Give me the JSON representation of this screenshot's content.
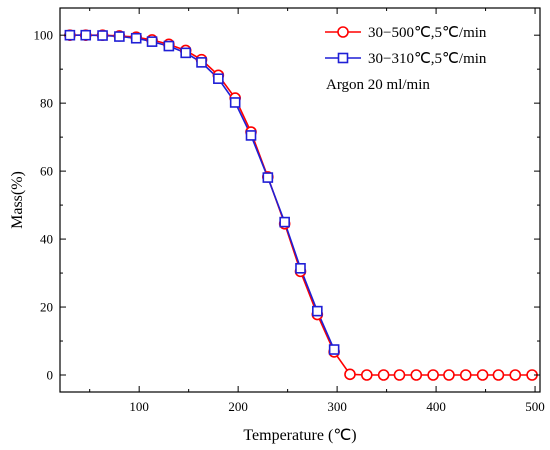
{
  "chart_data": {
    "type": "line",
    "xlabel": "Temperature (℃)",
    "ylabel": "Mass(%)",
    "xlim": [
      20,
      505
    ],
    "ylim": [
      -5,
      108
    ],
    "xticks": [
      100,
      200,
      300,
      400,
      500
    ],
    "yticks": [
      0,
      20,
      40,
      60,
      80,
      100
    ],
    "xtick_labels": [
      "100",
      "200",
      "300",
      "400",
      "500"
    ],
    "ytick_labels": [
      "0",
      "20",
      "40",
      "60",
      "80",
      "100"
    ],
    "grid": false,
    "legend_position": "top-right",
    "annotation": "Argon 20 ml/min",
    "series": [
      {
        "name": "30−500℃,5℃/min",
        "color": "#ff0000",
        "marker": "circle",
        "x": [
          30,
          46,
          63,
          80,
          97,
          113,
          130,
          147,
          163,
          180,
          197,
          213,
          230,
          247,
          263,
          280,
          297,
          313,
          330,
          347,
          363,
          380,
          397,
          413,
          430,
          447,
          463,
          480,
          497
        ],
        "y": [
          100,
          100,
          100,
          99.8,
          99.4,
          98.6,
          97.3,
          95.5,
          92.8,
          88.2,
          81.5,
          71.5,
          58.3,
          44.5,
          30.5,
          17.8,
          6.8,
          0.2,
          0,
          0,
          0,
          0,
          0,
          0,
          0,
          0,
          0,
          0,
          0
        ]
      },
      {
        "name": "30−310℃,5℃/min",
        "color": "#1f1fd6",
        "marker": "square",
        "x": [
          30,
          46,
          63,
          80,
          97,
          113,
          130,
          147,
          163,
          180,
          197,
          213,
          230,
          247,
          263,
          280,
          297
        ],
        "y": [
          100,
          100,
          99.9,
          99.6,
          99.1,
          98.1,
          96.8,
          94.8,
          92.0,
          87.2,
          80.2,
          70.5,
          58.1,
          45.0,
          31.4,
          18.8,
          7.5
        ]
      }
    ]
  }
}
